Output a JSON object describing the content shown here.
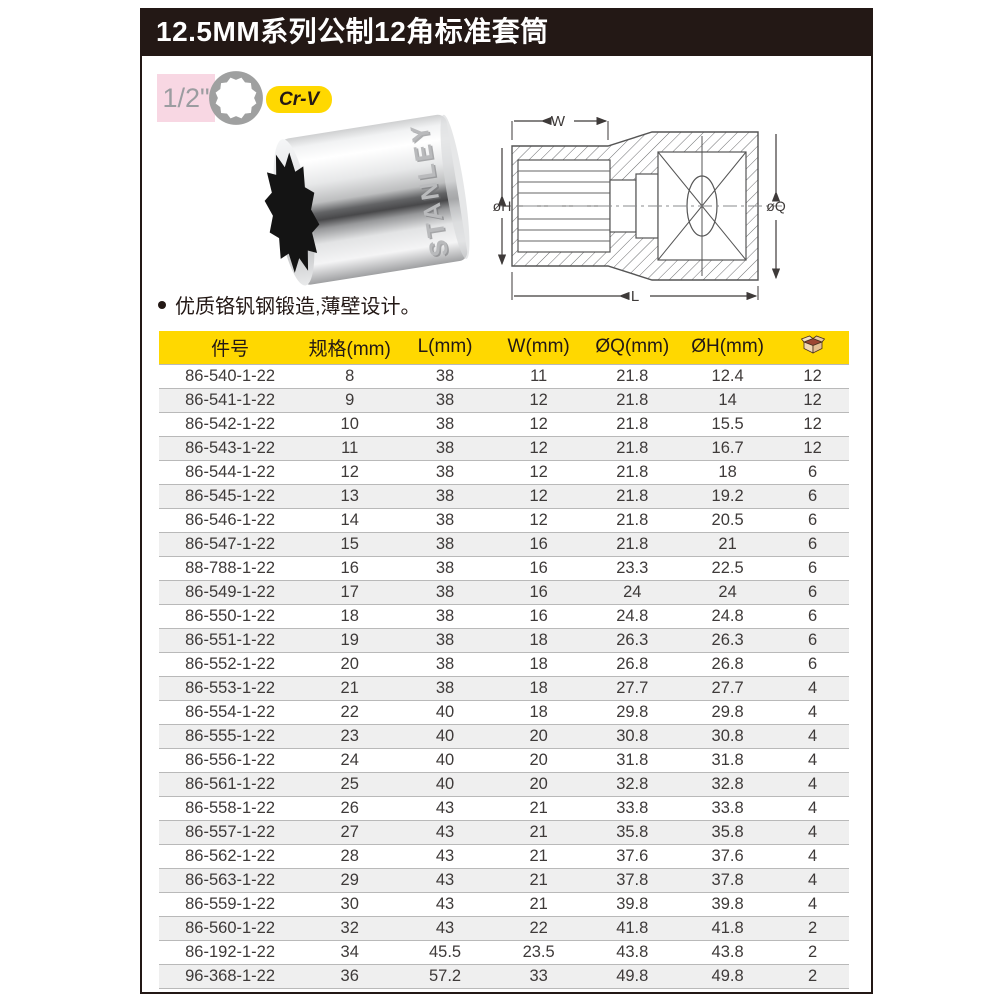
{
  "header": {
    "title": "12.5MM系列公制12角标准套筒"
  },
  "badges": {
    "drive_size": "1/2\"",
    "socket_profile_icon": "12-point-socket-icon",
    "material": "Cr-V"
  },
  "product": {
    "brand": "STANLEY"
  },
  "features": {
    "bullet": "优质铬钒钢锻造,薄壁设计。"
  },
  "diagram": {
    "label_w": "W",
    "label_h": "øH",
    "label_q": "øQ",
    "label_l": "L"
  },
  "table": {
    "headers": [
      "件号",
      "规格(mm)",
      "L(mm)",
      "W(mm)",
      "ØQ(mm)",
      "ØH(mm)"
    ],
    "pack_column_icon": "carton-box-icon",
    "rows": [
      [
        "86-540-1-22",
        "8",
        "38",
        "11",
        "21.8",
        "12.4",
        "12"
      ],
      [
        "86-541-1-22",
        "9",
        "38",
        "12",
        "21.8",
        "14",
        "12"
      ],
      [
        "86-542-1-22",
        "10",
        "38",
        "12",
        "21.8",
        "15.5",
        "12"
      ],
      [
        "86-543-1-22",
        "11",
        "38",
        "12",
        "21.8",
        "16.7",
        "12"
      ],
      [
        "86-544-1-22",
        "12",
        "38",
        "12",
        "21.8",
        "18",
        "6"
      ],
      [
        "86-545-1-22",
        "13",
        "38",
        "12",
        "21.8",
        "19.2",
        "6"
      ],
      [
        "86-546-1-22",
        "14",
        "38",
        "12",
        "21.8",
        "20.5",
        "6"
      ],
      [
        "86-547-1-22",
        "15",
        "38",
        "16",
        "21.8",
        "21",
        "6"
      ],
      [
        "88-788-1-22",
        "16",
        "38",
        "16",
        "23.3",
        "22.5",
        "6"
      ],
      [
        "86-549-1-22",
        "17",
        "38",
        "16",
        "24",
        "24",
        "6"
      ],
      [
        "86-550-1-22",
        "18",
        "38",
        "16",
        "24.8",
        "24.8",
        "6"
      ],
      [
        "86-551-1-22",
        "19",
        "38",
        "18",
        "26.3",
        "26.3",
        "6"
      ],
      [
        "86-552-1-22",
        "20",
        "38",
        "18",
        "26.8",
        "26.8",
        "6"
      ],
      [
        "86-553-1-22",
        "21",
        "38",
        "18",
        "27.7",
        "27.7",
        "4"
      ],
      [
        "86-554-1-22",
        "22",
        "40",
        "18",
        "29.8",
        "29.8",
        "4"
      ],
      [
        "86-555-1-22",
        "23",
        "40",
        "20",
        "30.8",
        "30.8",
        "4"
      ],
      [
        "86-556-1-22",
        "24",
        "40",
        "20",
        "31.8",
        "31.8",
        "4"
      ],
      [
        "86-561-1-22",
        "25",
        "40",
        "20",
        "32.8",
        "32.8",
        "4"
      ],
      [
        "86-558-1-22",
        "26",
        "43",
        "21",
        "33.8",
        "33.8",
        "4"
      ],
      [
        "86-557-1-22",
        "27",
        "43",
        "21",
        "35.8",
        "35.8",
        "4"
      ],
      [
        "86-562-1-22",
        "28",
        "43",
        "21",
        "37.6",
        "37.6",
        "4"
      ],
      [
        "86-563-1-22",
        "29",
        "43",
        "21",
        "37.8",
        "37.8",
        "4"
      ],
      [
        "86-559-1-22",
        "30",
        "43",
        "21",
        "39.8",
        "39.8",
        "4"
      ],
      [
        "86-560-1-22",
        "32",
        "43",
        "22",
        "41.8",
        "41.8",
        "2"
      ],
      [
        "86-192-1-22",
        "34",
        "45.5",
        "23.5",
        "43.8",
        "43.8",
        "2"
      ],
      [
        "96-368-1-22",
        "36",
        "57.2",
        "33",
        "49.8",
        "49.8",
        "2"
      ]
    ]
  },
  "colors": {
    "accent_yellow": "#ffd800",
    "frame_black": "#231815",
    "badge_pink": "#f8d7e3",
    "row_alt_gray": "#efefef"
  }
}
